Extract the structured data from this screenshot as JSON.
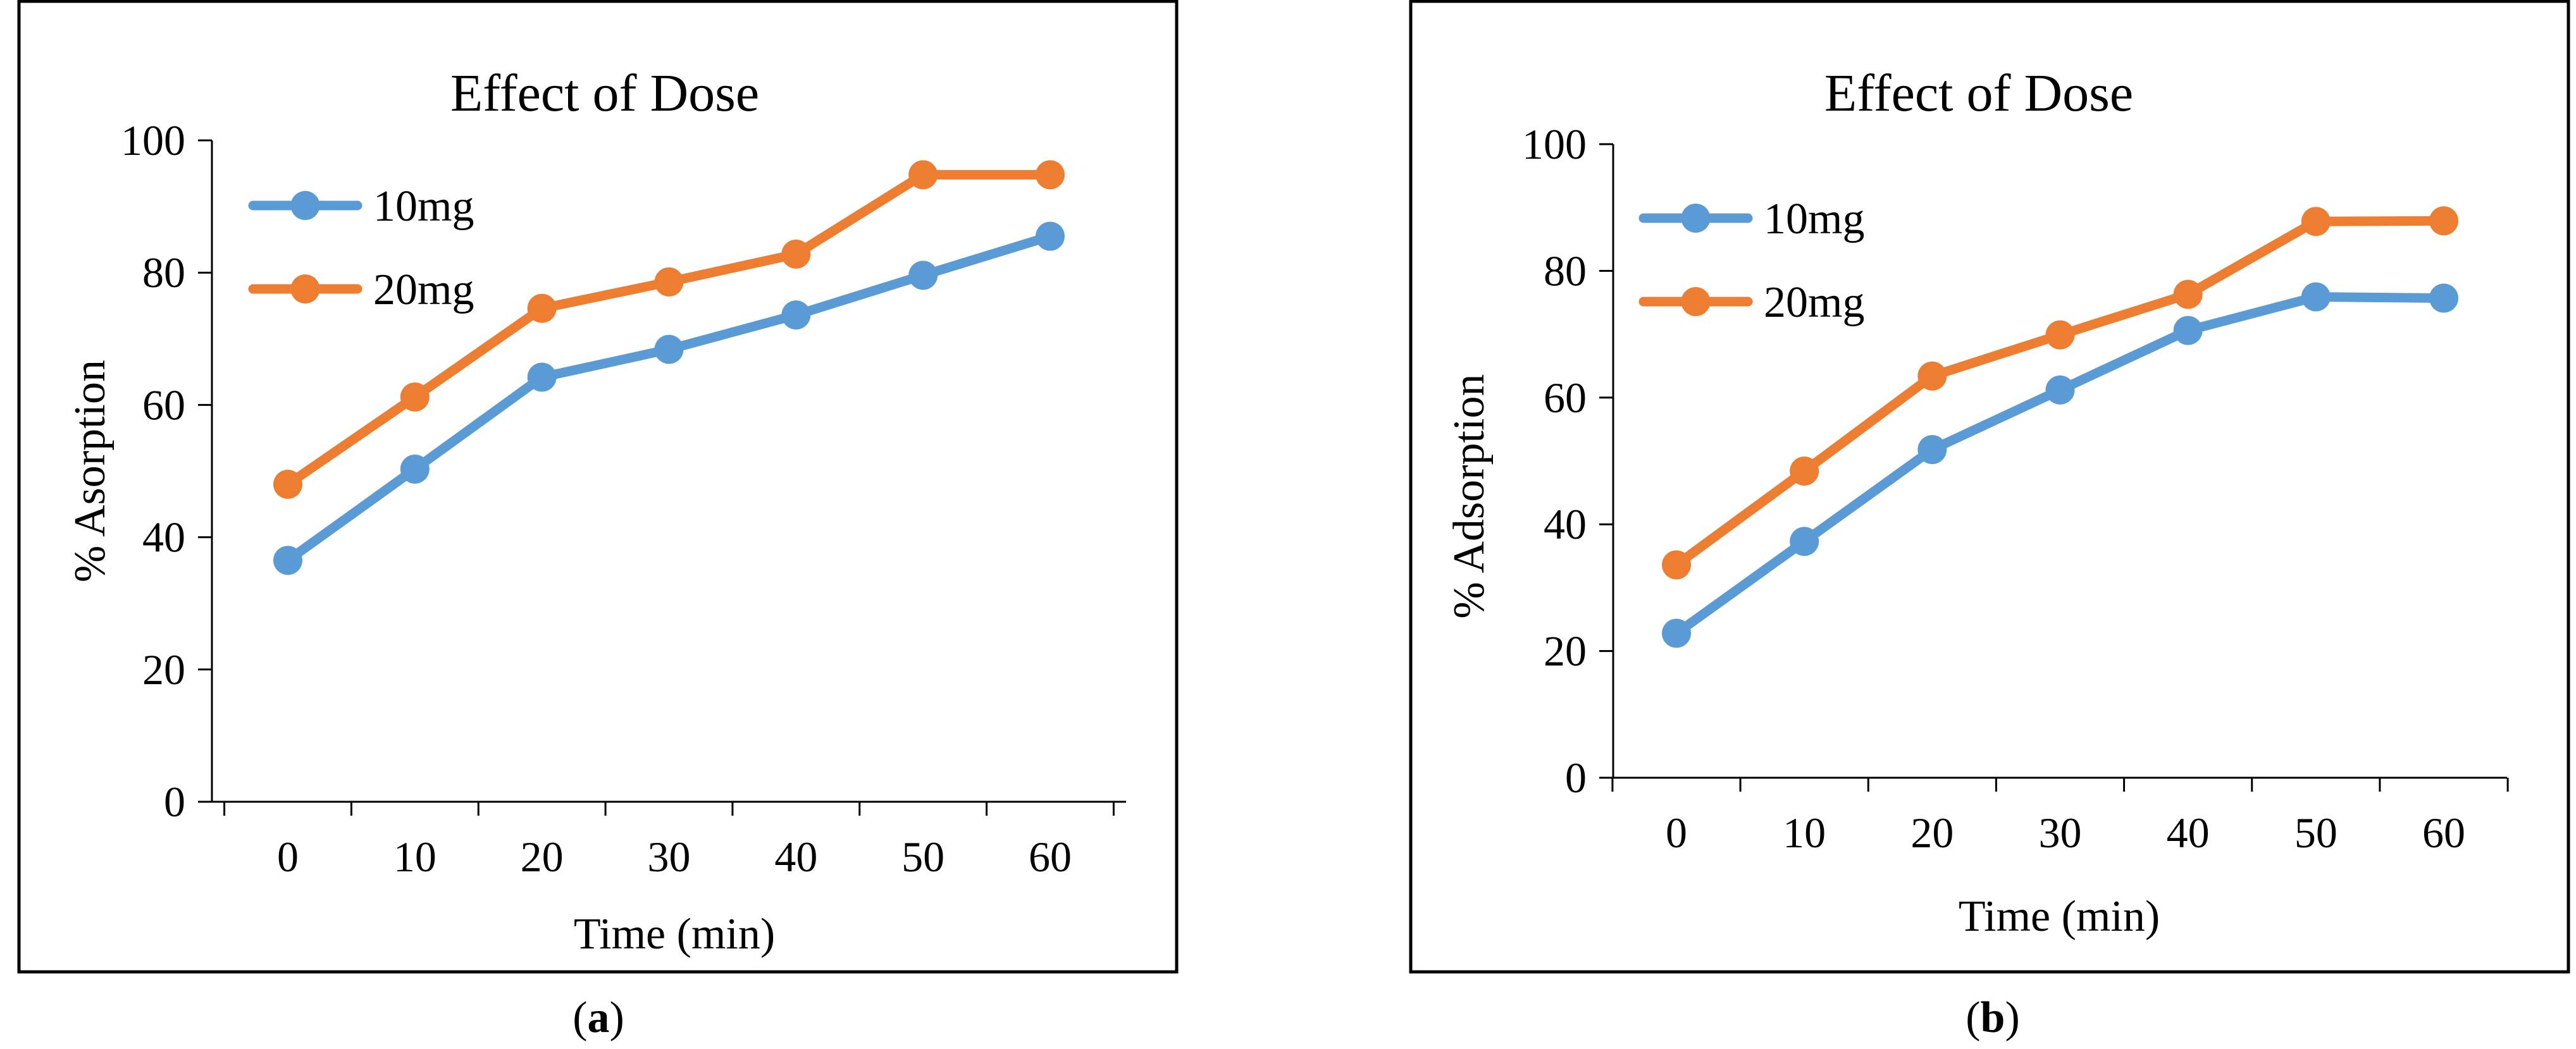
{
  "colors": {
    "series1": "#5B9BD5",
    "series2": "#ED7D31"
  },
  "chart_data": [
    {
      "type": "line",
      "title": "Effect of Dose",
      "xlabel": "Time (min)",
      "ylabel": "% Asorption",
      "x": [
        0,
        10,
        20,
        30,
        40,
        50,
        60
      ],
      "xlim": [
        0,
        60
      ],
      "ylim": [
        0,
        100
      ],
      "yticks": [
        0,
        20,
        40,
        60,
        80,
        100
      ],
      "legend": "top-left",
      "grid": false,
      "series": [
        {
          "name": "10mg",
          "values": [
            36.5,
            50.3,
            64.2,
            68.4,
            73.6,
            79.6,
            85.5
          ]
        },
        {
          "name": "20mg",
          "values": [
            48.0,
            61.2,
            74.6,
            78.6,
            82.8,
            94.8,
            94.8
          ]
        }
      ],
      "caption": {
        "open": "(",
        "letter": "a",
        "close": ")"
      }
    },
    {
      "type": "line",
      "title": "Effect of Dose",
      "xlabel": "Time (min)",
      "ylabel": "% Adsorption",
      "x": [
        0,
        10,
        20,
        30,
        40,
        50,
        60
      ],
      "xlim": [
        0,
        60
      ],
      "ylim": [
        0,
        100
      ],
      "yticks": [
        0,
        20,
        40,
        60,
        80,
        100
      ],
      "legend": "top-left",
      "grid": false,
      "series": [
        {
          "name": "10mg",
          "values": [
            22.8,
            37.3,
            51.8,
            61.2,
            70.6,
            75.9,
            75.7
          ]
        },
        {
          "name": "20mg",
          "values": [
            33.6,
            48.4,
            63.4,
            69.9,
            76.3,
            87.8,
            87.9
          ]
        }
      ],
      "caption": {
        "open": "(",
        "letter": "b",
        "close": ")"
      }
    }
  ]
}
